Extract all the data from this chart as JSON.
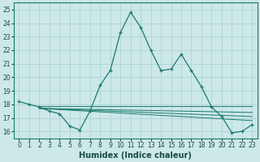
{
  "xlabel": "Humidex (Indice chaleur)",
  "background_color": "#cce8e8",
  "grid_color": "#aacfcf",
  "line_color": "#1a7a6e",
  "xlim": [
    -0.5,
    23.5
  ],
  "ylim": [
    15.5,
    25.5
  ],
  "yticks": [
    16,
    17,
    18,
    19,
    20,
    21,
    22,
    23,
    24,
    25
  ],
  "xticks": [
    0,
    1,
    2,
    3,
    4,
    5,
    6,
    7,
    8,
    9,
    10,
    11,
    12,
    13,
    14,
    15,
    16,
    17,
    18,
    19,
    20,
    21,
    22,
    23
  ],
  "main_line": {
    "x": [
      0,
      1,
      2,
      3,
      4,
      5,
      6,
      7,
      8,
      9,
      10,
      11,
      12,
      13,
      14,
      15,
      16,
      17,
      18,
      19,
      20,
      21,
      22,
      23
    ],
    "y": [
      18.2,
      18.0,
      17.8,
      17.5,
      17.3,
      16.4,
      16.1,
      17.5,
      19.4,
      20.5,
      23.3,
      24.8,
      23.7,
      22.0,
      20.5,
      20.6,
      21.7,
      20.5,
      19.3,
      17.8,
      17.1,
      15.9,
      16.0,
      16.5
    ]
  },
  "flat_lines": [
    {
      "x": [
        2,
        23
      ],
      "y": [
        17.85,
        17.85
      ]
    },
    {
      "x": [
        2,
        23
      ],
      "y": [
        17.7,
        17.4
      ]
    },
    {
      "x": [
        2,
        23
      ],
      "y": [
        17.7,
        17.1
      ]
    },
    {
      "x": [
        2,
        23
      ],
      "y": [
        17.7,
        16.8
      ]
    }
  ],
  "xlabel_fontsize": 7,
  "tick_fontsize": 5.5
}
